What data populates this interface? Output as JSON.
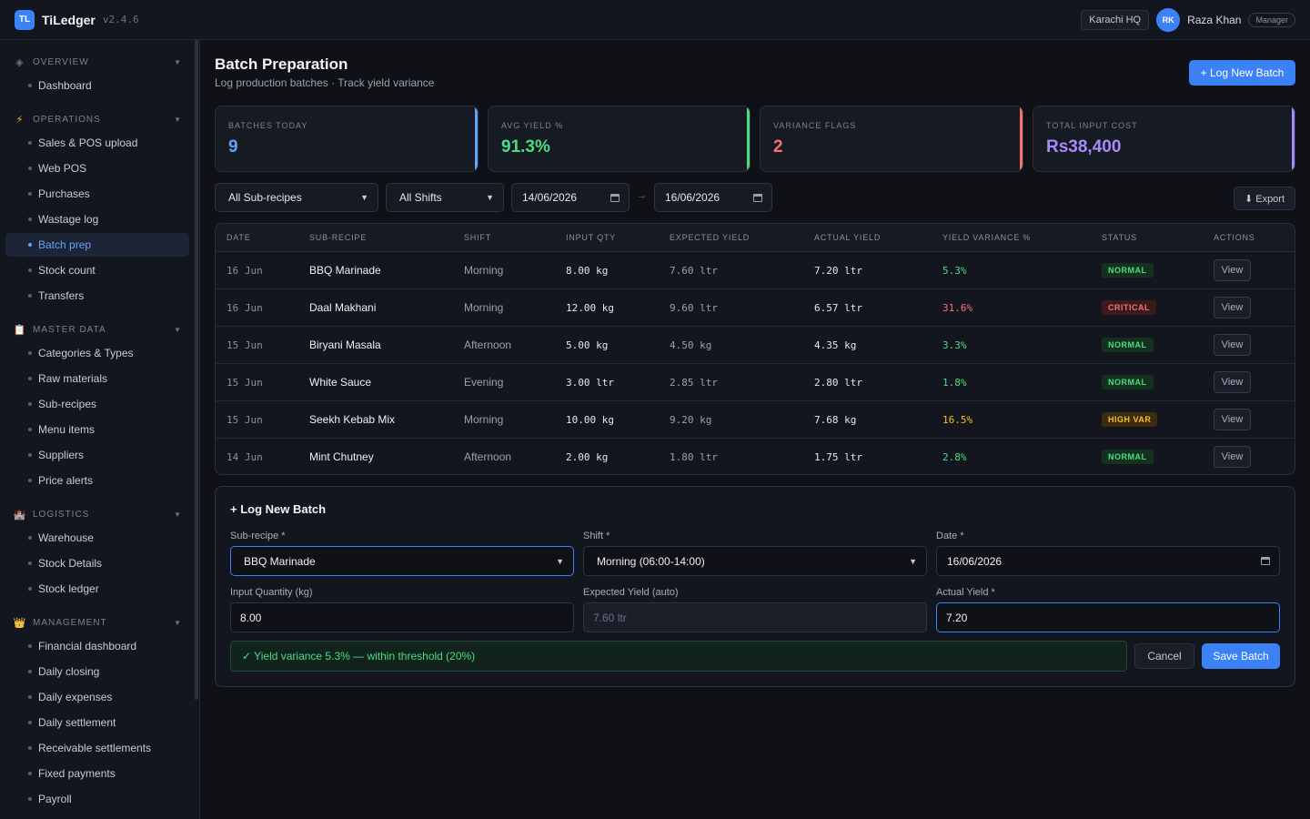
{
  "app": {
    "logo": "TL",
    "name": "TiLedger",
    "version": "v2.4.6"
  },
  "topbar": {
    "location": "Karachi HQ",
    "user_initials": "RK",
    "user_name": "Raza Khan",
    "role": "Manager"
  },
  "sidebar": {
    "sections": [
      {
        "label": "OVERVIEW",
        "icon": "diamond-icon",
        "items": [
          "Dashboard"
        ]
      },
      {
        "label": "OPERATIONS",
        "icon": "lightning-icon",
        "items": [
          "Sales & POS upload",
          "Web POS",
          "Purchases",
          "Wastage log",
          "Batch prep",
          "Stock count",
          "Transfers"
        ]
      },
      {
        "label": "MASTER DATA",
        "icon": "clipboard-icon",
        "items": [
          "Categories & Types",
          "Raw materials",
          "Sub-recipes",
          "Menu items",
          "Suppliers",
          "Price alerts"
        ]
      },
      {
        "label": "LOGISTICS",
        "icon": "castle-icon",
        "items": [
          "Warehouse",
          "Stock Details",
          "Stock ledger"
        ]
      },
      {
        "label": "MANAGEMENT",
        "icon": "crown-icon",
        "items": [
          "Financial dashboard",
          "Daily closing",
          "Daily expenses",
          "Daily settlement",
          "Receivable settlements",
          "Fixed payments",
          "Payroll"
        ]
      }
    ],
    "active_item": "Batch prep"
  },
  "page": {
    "title": "Batch Preparation",
    "subtitle": "Log production batches · Track yield variance",
    "new_batch_button": "+ Log New Batch"
  },
  "stats": [
    {
      "label": "BATCHES TODAY",
      "value": "9",
      "color": "#60a5fa"
    },
    {
      "label": "AVG YIELD %",
      "value": "91.3%",
      "color": "#4ade80"
    },
    {
      "label": "VARIANCE FLAGS",
      "value": "2",
      "color": "#f87171"
    },
    {
      "label": "TOTAL INPUT COST",
      "value": "Rs38,400",
      "color": "#a78bfa"
    }
  ],
  "filters": {
    "subrecipe": "All Sub-recipes",
    "shift": "All Shifts",
    "date_from": "14/06/2026",
    "date_to": "16/06/2026",
    "date_sep": "→",
    "export": "⬇ Export"
  },
  "table": {
    "headers": [
      "DATE",
      "SUB-RECIPE",
      "SHIFT",
      "INPUT QTY",
      "EXPECTED YIELD",
      "ACTUAL YIELD",
      "YIELD VARIANCE %",
      "STATUS",
      "ACTIONS"
    ],
    "rows": [
      {
        "date": "16 Jun",
        "name": "BBQ Marinade",
        "shift": "Morning",
        "input": "8.00 kg",
        "expected": "7.60 ltr",
        "actual": "7.20 ltr",
        "variance": "5.3%",
        "status": "NORMAL",
        "action": "View"
      },
      {
        "date": "16 Jun",
        "name": "Daal Makhani",
        "shift": "Morning",
        "input": "12.00 kg",
        "expected": "9.60 ltr",
        "actual": "6.57 ltr",
        "variance": "31.6%",
        "status": "CRITICAL",
        "action": "View"
      },
      {
        "date": "15 Jun",
        "name": "Biryani Masala",
        "shift": "Afternoon",
        "input": "5.00 kg",
        "expected": "4.50 kg",
        "actual": "4.35 kg",
        "variance": "3.3%",
        "status": "NORMAL",
        "action": "View"
      },
      {
        "date": "15 Jun",
        "name": "White Sauce",
        "shift": "Evening",
        "input": "3.00 ltr",
        "expected": "2.85 ltr",
        "actual": "2.80 ltr",
        "variance": "1.8%",
        "status": "NORMAL",
        "action": "View"
      },
      {
        "date": "15 Jun",
        "name": "Seekh Kebab Mix",
        "shift": "Morning",
        "input": "10.00 kg",
        "expected": "9.20 kg",
        "actual": "7.68 kg",
        "variance": "16.5%",
        "status": "HIGH VAR",
        "action": "View"
      },
      {
        "date": "14 Jun",
        "name": "Mint Chutney",
        "shift": "Afternoon",
        "input": "2.00 kg",
        "expected": "1.80 ltr",
        "actual": "1.75 ltr",
        "variance": "2.8%",
        "status": "NORMAL",
        "action": "View"
      }
    ]
  },
  "status_colors": {
    "NORMAL": {
      "fg": "#4ade80",
      "bg": "#14311f"
    },
    "CRITICAL": {
      "fg": "#f87171",
      "bg": "#3a1a1d"
    },
    "HIGH VAR": {
      "fg": "#fbbf24",
      "bg": "#3a2c12"
    }
  },
  "form": {
    "title": "+ Log New Batch",
    "subrecipe_label": "Sub-recipe *",
    "subrecipe_value": "BBQ Marinade",
    "shift_label": "Shift *",
    "shift_value": "Morning (06:00-14:00)",
    "date_label": "Date *",
    "date_value": "16/06/2026",
    "input_label": "Input Quantity (kg)",
    "input_value": "8.00",
    "expected_label": "Expected Yield (auto)",
    "expected_value": "7.60 ltr",
    "actual_label": "Actual Yield *",
    "actual_value": "7.20",
    "hint": "✓ Yield variance 5.3% — within threshold (20%)",
    "cancel": "Cancel",
    "save": "Save Batch"
  }
}
